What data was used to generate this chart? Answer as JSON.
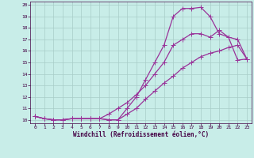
{
  "xlabel": "Windchill (Refroidissement éolien,°C)",
  "bg_color": "#c8ede8",
  "grid_color": "#a8cdc8",
  "line_color": "#993399",
  "xlim": [
    -0.5,
    23.5
  ],
  "ylim": [
    9.7,
    20.3
  ],
  "xticks": [
    0,
    1,
    2,
    3,
    4,
    5,
    6,
    7,
    8,
    9,
    10,
    11,
    12,
    13,
    14,
    15,
    16,
    17,
    18,
    19,
    20,
    21,
    22,
    23
  ],
  "yticks": [
    10,
    11,
    12,
    13,
    14,
    15,
    16,
    17,
    18,
    19,
    20
  ],
  "line1_x": [
    0,
    1,
    2,
    3,
    4,
    5,
    6,
    7,
    8,
    9,
    10,
    11,
    12,
    13,
    14,
    15,
    16,
    17,
    18,
    19,
    20,
    21,
    22,
    23
  ],
  "line1_y": [
    10.3,
    10.1,
    10.0,
    10.0,
    10.1,
    10.1,
    10.1,
    10.1,
    10.0,
    10.0,
    10.5,
    11.0,
    11.8,
    12.5,
    13.2,
    13.8,
    14.5,
    15.0,
    15.5,
    15.8,
    16.0,
    16.3,
    16.5,
    15.3
  ],
  "line2_x": [
    0,
    1,
    2,
    3,
    4,
    5,
    6,
    7,
    8,
    9,
    10,
    11,
    12,
    13,
    14,
    15,
    16,
    17,
    18,
    19,
    20,
    21,
    22,
    23
  ],
  "line2_y": [
    10.3,
    10.1,
    10.0,
    10.0,
    10.1,
    10.1,
    10.1,
    10.1,
    10.5,
    11.0,
    11.5,
    12.2,
    13.0,
    14.0,
    15.0,
    16.5,
    17.0,
    17.5,
    17.5,
    17.2,
    17.8,
    17.2,
    17.0,
    15.3
  ],
  "line3_x": [
    0,
    1,
    2,
    3,
    4,
    5,
    6,
    7,
    8,
    9,
    10,
    11,
    12,
    13,
    14,
    15,
    16,
    17,
    18,
    19,
    20,
    21,
    22,
    23
  ],
  "line3_y": [
    10.3,
    10.1,
    10.0,
    10.0,
    10.1,
    10.1,
    10.1,
    10.1,
    10.0,
    10.0,
    11.0,
    12.0,
    13.5,
    15.0,
    16.5,
    19.0,
    19.7,
    19.7,
    19.8,
    19.0,
    17.5,
    17.2,
    15.2,
    15.3
  ]
}
